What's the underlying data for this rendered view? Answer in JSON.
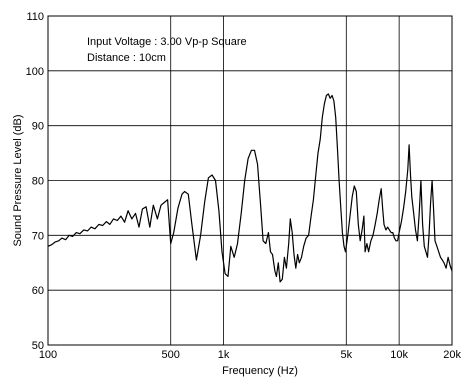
{
  "chart_data": {
    "type": "line",
    "xlabel": "Frequency (Hz)",
    "ylabel": "Sound Pressure Level (dB)",
    "xscale": "log",
    "xlim": [
      100,
      20000
    ],
    "ylim": [
      50,
      110
    ],
    "grid": true,
    "x_ticks": [
      100,
      500,
      1000,
      5000,
      10000,
      20000
    ],
    "x_tick_labels": [
      "100",
      "500",
      "1k",
      "5k",
      "10k",
      "20k"
    ],
    "y_ticks": [
      50,
      60,
      70,
      80,
      90,
      100,
      110
    ],
    "y_tick_labels": [
      "50",
      "60",
      "70",
      "80",
      "90",
      "100",
      "110"
    ],
    "annotations": [
      "Input Voltage : 3.00 Vp-p Square",
      "Distance : 10cm"
    ],
    "line_color": "#000000",
    "series": [
      {
        "points": [
          [
            100,
            68
          ],
          [
            105,
            68.3
          ],
          [
            110,
            68.8
          ],
          [
            115,
            69.0
          ],
          [
            120,
            69.5
          ],
          [
            126,
            69.2
          ],
          [
            132,
            70.0
          ],
          [
            138,
            69.8
          ],
          [
            145,
            70.5
          ],
          [
            152,
            70.3
          ],
          [
            160,
            71.0
          ],
          [
            168,
            70.8
          ],
          [
            176,
            71.5
          ],
          [
            185,
            71.2
          ],
          [
            195,
            72.0
          ],
          [
            205,
            71.8
          ],
          [
            215,
            72.5
          ],
          [
            225,
            72.0
          ],
          [
            236,
            73.0
          ],
          [
            248,
            72.7
          ],
          [
            260,
            73.5
          ],
          [
            273,
            72.4
          ],
          [
            286,
            74.5
          ],
          [
            300,
            73.0
          ],
          [
            315,
            74.0
          ],
          [
            330,
            71.5
          ],
          [
            345,
            74.8
          ],
          [
            362,
            75.2
          ],
          [
            380,
            71.5
          ],
          [
            398,
            75.5
          ],
          [
            420,
            73.0
          ],
          [
            440,
            75.5
          ],
          [
            460,
            76.0
          ],
          [
            480,
            76.5
          ],
          [
            500,
            68.5
          ],
          [
            520,
            70.5
          ],
          [
            550,
            75.0
          ],
          [
            580,
            77.5
          ],
          [
            600,
            78.0
          ],
          [
            630,
            77.5
          ],
          [
            660,
            72.0
          ],
          [
            700,
            65.5
          ],
          [
            740,
            70.0
          ],
          [
            780,
            76.0
          ],
          [
            820,
            80.5
          ],
          [
            860,
            81.0
          ],
          [
            900,
            80.0
          ],
          [
            940,
            74.5
          ],
          [
            980,
            67.0
          ],
          [
            1020,
            63.0
          ],
          [
            1060,
            62.5
          ],
          [
            1100,
            68.0
          ],
          [
            1150,
            66.0
          ],
          [
            1200,
            68.5
          ],
          [
            1260,
            74.0
          ],
          [
            1320,
            80.0
          ],
          [
            1380,
            84.0
          ],
          [
            1440,
            85.5
          ],
          [
            1500,
            85.5
          ],
          [
            1560,
            83.0
          ],
          [
            1620,
            76.0
          ],
          [
            1680,
            69.0
          ],
          [
            1740,
            68.5
          ],
          [
            1800,
            70.5
          ],
          [
            1850,
            67.0
          ],
          [
            1900,
            66.5
          ],
          [
            1960,
            63.5
          ],
          [
            2000,
            62.5
          ],
          [
            2050,
            65.0
          ],
          [
            2100,
            61.5
          ],
          [
            2160,
            62.0
          ],
          [
            2220,
            66.0
          ],
          [
            2280,
            64.0
          ],
          [
            2350,
            68.5
          ],
          [
            2400,
            73.0
          ],
          [
            2460,
            70.5
          ],
          [
            2520,
            66.5
          ],
          [
            2580,
            64.0
          ],
          [
            2640,
            66.5
          ],
          [
            2700,
            65.0
          ],
          [
            2780,
            66.0
          ],
          [
            2860,
            68.0
          ],
          [
            2950,
            69.5
          ],
          [
            3050,
            70.0
          ],
          [
            3150,
            73.5
          ],
          [
            3250,
            76.5
          ],
          [
            3350,
            81.0
          ],
          [
            3450,
            85.0
          ],
          [
            3550,
            87.5
          ],
          [
            3650,
            91.5
          ],
          [
            3750,
            94.0
          ],
          [
            3850,
            95.5
          ],
          [
            3950,
            95.8
          ],
          [
            4050,
            95.0
          ],
          [
            4150,
            95.5
          ],
          [
            4250,
            94.5
          ],
          [
            4350,
            91.5
          ],
          [
            4450,
            86.0
          ],
          [
            4550,
            80.0
          ],
          [
            4650,
            75.0
          ],
          [
            4750,
            70.5
          ],
          [
            4850,
            68.0
          ],
          [
            4950,
            67.0
          ],
          [
            5100,
            70.0
          ],
          [
            5250,
            73.5
          ],
          [
            5400,
            77.0
          ],
          [
            5550,
            79.0
          ],
          [
            5700,
            78.0
          ],
          [
            5850,
            72.0
          ],
          [
            6000,
            69.0
          ],
          [
            6150,
            71.0
          ],
          [
            6300,
            73.5
          ],
          [
            6400,
            67.0
          ],
          [
            6550,
            68.5
          ],
          [
            6700,
            67.0
          ],
          [
            6900,
            69.0
          ],
          [
            7100,
            70.0
          ],
          [
            7300,
            72.0
          ],
          [
            7500,
            74.0
          ],
          [
            7700,
            76.5
          ],
          [
            7900,
            78.5
          ],
          [
            8050,
            75.0
          ],
          [
            8200,
            72.0
          ],
          [
            8400,
            71.0
          ],
          [
            8600,
            71.5
          ],
          [
            8800,
            71.0
          ],
          [
            9000,
            70.5
          ],
          [
            9200,
            70.5
          ],
          [
            9400,
            69.5
          ],
          [
            9600,
            69.0
          ],
          [
            9800,
            69.0
          ],
          [
            10000,
            70.5
          ],
          [
            10300,
            72.5
          ],
          [
            10600,
            75.0
          ],
          [
            10900,
            78.0
          ],
          [
            11200,
            82.0
          ],
          [
            11400,
            86.5
          ],
          [
            11600,
            81.0
          ],
          [
            11800,
            77.0
          ],
          [
            12100,
            74.0
          ],
          [
            12400,
            71.0
          ],
          [
            12700,
            69.0
          ],
          [
            13000,
            74.0
          ],
          [
            13300,
            80.0
          ],
          [
            13600,
            72.0
          ],
          [
            13900,
            68.0
          ],
          [
            14200,
            67.0
          ],
          [
            14500,
            66.0
          ],
          [
            14800,
            70.0
          ],
          [
            15100,
            76.0
          ],
          [
            15400,
            80.0
          ],
          [
            15700,
            75.0
          ],
          [
            16000,
            69.0
          ],
          [
            16400,
            68.0
          ],
          [
            16800,
            67.0
          ],
          [
            17200,
            66.0
          ],
          [
            17600,
            65.5
          ],
          [
            18000,
            65.0
          ],
          [
            18500,
            64.0
          ],
          [
            19000,
            66.0
          ],
          [
            19500,
            64.5
          ],
          [
            20000,
            63.5
          ]
        ]
      }
    ]
  }
}
